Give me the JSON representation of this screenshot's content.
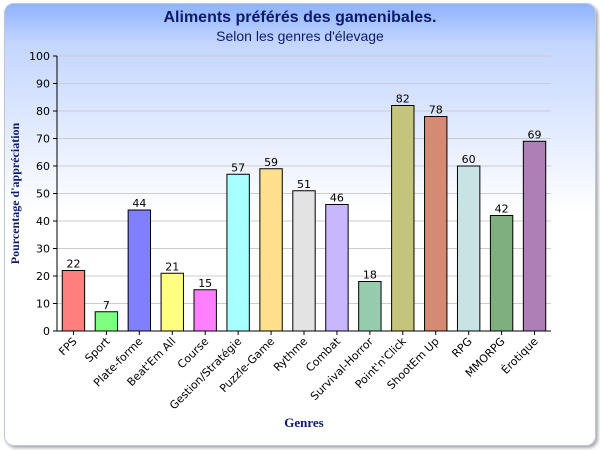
{
  "colors": {
    "axis": "#000000",
    "grid": "#cccccc",
    "bar_stroke": "#000000",
    "title": "#0c1a6b",
    "ylabel": "#0c1a6b",
    "xlabel": "#0c1a6b"
  },
  "chart_data": {
    "type": "bar",
    "title": "Aliments préférés des gamenibales.",
    "subtitle": "Selon les genres d'élevage",
    "xlabel": "Genres",
    "ylabel": "Pourcentage d'appréciation",
    "ylim": [
      0,
      100
    ],
    "yticks": [
      0,
      10,
      20,
      30,
      40,
      50,
      60,
      70,
      80,
      90,
      100
    ],
    "grid": true,
    "categories": [
      "FPS",
      "Sport",
      "Plate-forme",
      "Beat'Em All",
      "Course",
      "Gestion/Stratégie",
      "Puzzle-Game",
      "Rythme",
      "Combat",
      "Survival-Horror",
      "Point'n'Click",
      "ShootEm Up",
      "RPG",
      "MMORPG",
      "Érotique"
    ],
    "values": [
      22,
      7,
      44,
      21,
      15,
      57,
      59,
      51,
      46,
      18,
      82,
      78,
      60,
      42,
      69
    ],
    "bar_colors": [
      "#ff7f7f",
      "#7fff7f",
      "#7f7fff",
      "#ffff7f",
      "#ff7fff",
      "#a8ffff",
      "#ffe08f",
      "#e3e3e3",
      "#c8b6ff",
      "#96ccad",
      "#c4c47d",
      "#d58a73",
      "#c7e3e3",
      "#7fae7f",
      "#ad7fb6"
    ]
  }
}
